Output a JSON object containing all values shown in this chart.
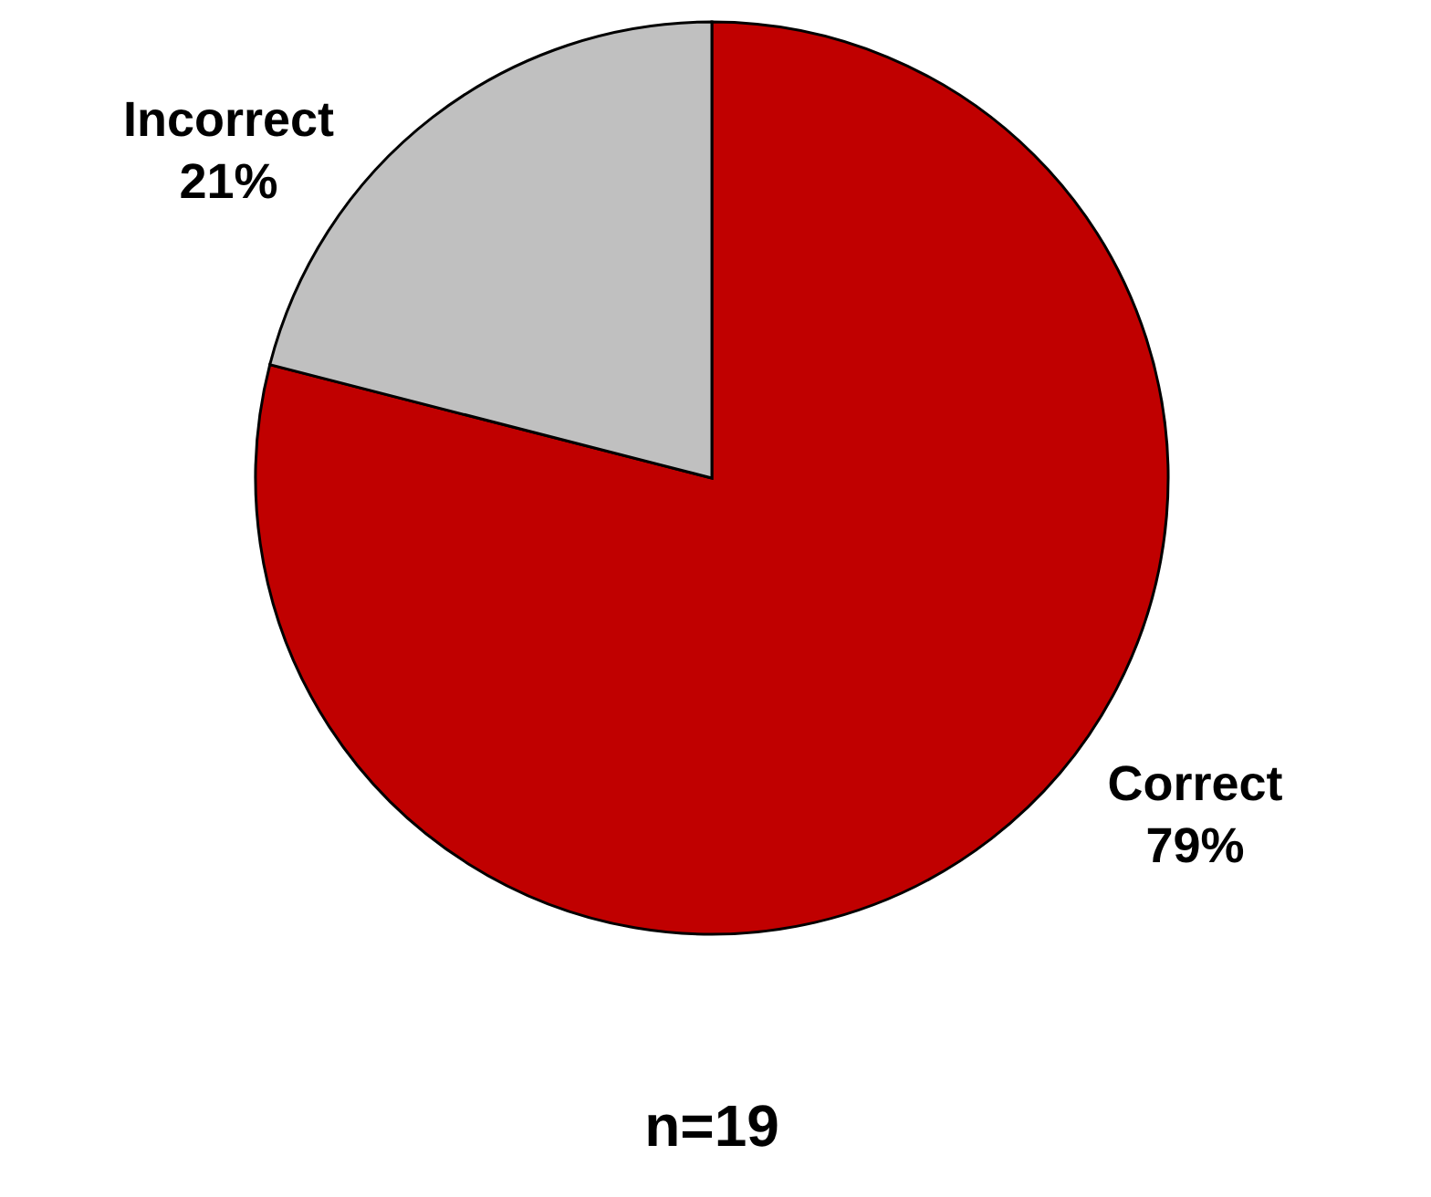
{
  "chart_data": {
    "type": "pie",
    "categories": [
      "Correct",
      "Incorrect"
    ],
    "values": [
      79,
      21
    ],
    "colors": [
      "#c00000",
      "#c0c0c0"
    ],
    "value_labels": [
      "79%",
      "21%"
    ],
    "annotations": [
      "n=19"
    ]
  }
}
